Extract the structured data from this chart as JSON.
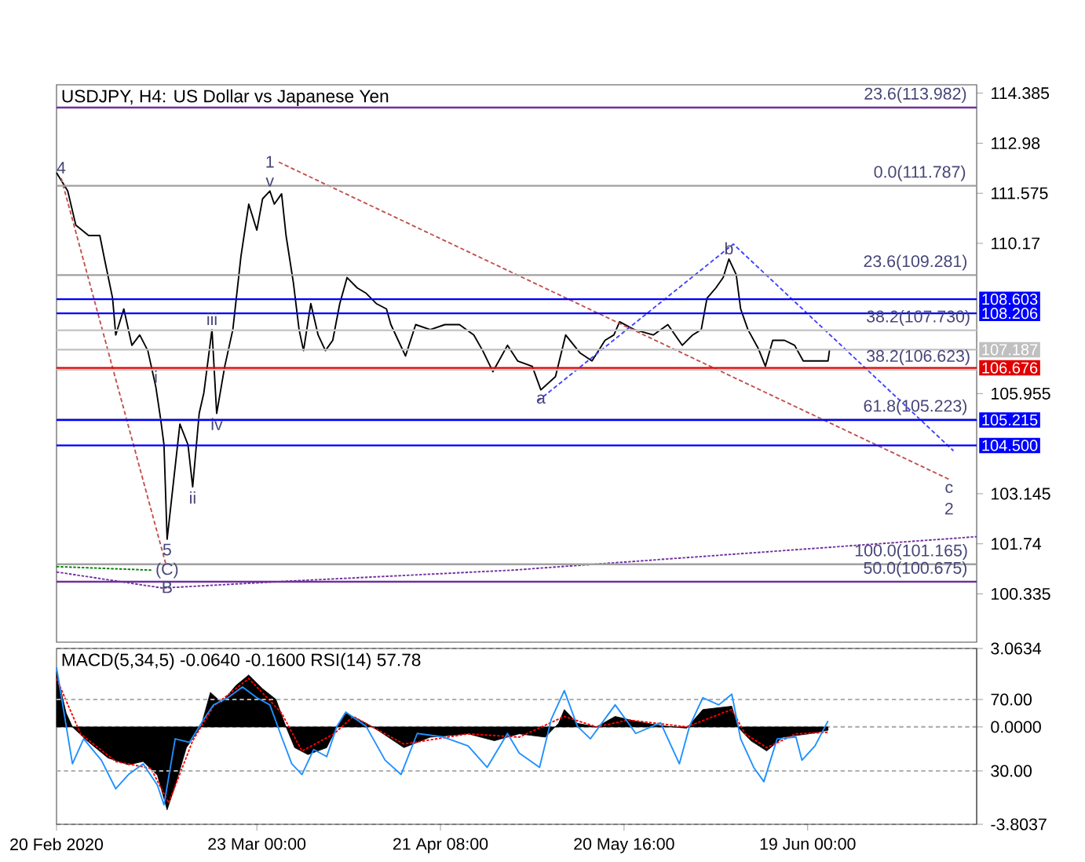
{
  "chart_data": [
    {
      "type": "line",
      "title": "USDJPY, H4:  US Dollar vs Japanese Yen",
      "xlim": [
        "2020-02-20T00:00",
        "2020-07-16T00:00"
      ],
      "ylim": [
        98.98,
        114.62
      ],
      "tick_labels": "y",
      "yticks": [
        114.385,
        112.98,
        111.575,
        110.17,
        105.955,
        103.145,
        101.74,
        100.335
      ],
      "series": [
        {
          "color": "#000000",
          "x": [
            "2020-02-20T00:00",
            "2020-02-21T19:00",
            "2020-02-23T02:00",
            "2020-02-25T03:00",
            "2020-02-26T22:00",
            "2020-02-27T16:00",
            "2020-02-28T23:00",
            "2020-02-29T11:00",
            "2020-03-01T18:00",
            "2020-03-03T01:00",
            "2020-03-04T07:00",
            "2020-03-05T14:00",
            "2020-03-06T21:00",
            "2020-03-07T15:00",
            "2020-03-08T04:00",
            "2020-03-08T16:00",
            "2020-03-09T10:00",
            "2020-03-10T17:00",
            "2020-03-12T00:00",
            "2020-03-12T18:00",
            "2020-03-13T19:00",
            "2020-03-14T13:00",
            "2020-03-15T20:00",
            "2020-03-16T14:00",
            "2020-03-17T21:00",
            "2020-03-19T04:00",
            "2020-03-20T11:00",
            "2020-03-21T17:00",
            "2020-03-23T00:00",
            "2020-03-23T22:00",
            "2020-03-25T02:00",
            "2020-03-25T19:00",
            "2020-03-26T23:00",
            "2020-03-27T16:00",
            "2020-03-28T20:00",
            "2020-03-29T18:00",
            "2020-03-30T11:00",
            "2020-03-31T15:00",
            "2020-04-01T19:00",
            "2020-04-02T23:00",
            "2020-04-04T03:00",
            "2020-04-05T06:00",
            "2020-04-06T10:00",
            "2020-04-08T01:00",
            "2020-04-09T11:00",
            "2020-04-11T02:00",
            "2020-04-12T17:00",
            "2020-04-13T10:00",
            "2020-04-15T18:00",
            "2020-04-17T09:00",
            "2020-04-19T17:00",
            "2020-04-22T01:00",
            "2020-04-24T09:00",
            "2020-04-26T16:00",
            "2020-04-28T02:00",
            "2020-04-29T17:00",
            "2020-05-02T01:00",
            "2020-05-03T16:00",
            "2020-05-06T00:00",
            "2020-05-07T09:00",
            "2020-05-09T17:00",
            "2020-05-11T08:00",
            "2020-05-13T16:00",
            "2020-05-15T13:00",
            "2020-05-17T15:00",
            "2020-05-19T01:00",
            "2020-05-19T23:00",
            "2020-05-22T07:00",
            "2020-05-25T08:00",
            "2020-05-27T16:00",
            "2020-05-29T23:00",
            "2020-05-31T15:00",
            "2020-06-02T00:00",
            "2020-06-02T22:00",
            "2020-06-04T08:00",
            "2020-06-05T12:00",
            "2020-06-06T10:00",
            "2020-06-07T14:00",
            "2020-06-08T07:00",
            "2020-06-09T11:00",
            "2020-06-11T02:00",
            "2020-06-12T06:00",
            "2020-06-13T10:00",
            "2020-06-15T07:00",
            "2020-06-16T22:00",
            "2020-06-18T07:00",
            "2020-06-20T09:00",
            "2020-06-22T06:00",
            "2020-06-22T12:00"
          ],
          "values": [
            112.15,
            111.64,
            110.68,
            110.39,
            110.39,
            109.73,
            108.63,
            107.6,
            108.33,
            107.31,
            107.6,
            107.16,
            106.13,
            105.25,
            104.52,
            101.87,
            103.05,
            105.1,
            104.52,
            103.34,
            105.4,
            105.98,
            107.75,
            105.4,
            106.72,
            107.75,
            109.8,
            111.27,
            110.54,
            111.42,
            111.64,
            111.27,
            111.56,
            110.39,
            109.07,
            107.75,
            107.16,
            108.48,
            107.6,
            107.16,
            107.45,
            108.48,
            109.21,
            108.92,
            108.77,
            108.48,
            108.33,
            107.89,
            107.01,
            107.89,
            107.75,
            107.89,
            107.89,
            107.6,
            107.16,
            106.57,
            107.31,
            106.87,
            106.72,
            106.06,
            106.43,
            107.6,
            107.09,
            106.87,
            107.45,
            107.6,
            107.97,
            107.75,
            107.6,
            107.89,
            107.31,
            107.6,
            107.75,
            108.63,
            108.92,
            109.21,
            109.73,
            109.29,
            108.33,
            107.75,
            107.23,
            106.72,
            107.45,
            107.45,
            107.31,
            106.87,
            106.87,
            106.87,
            107.19
          ]
        },
        {
          "color": "#c0504d",
          "line_style": "dashed",
          "x": [
            "2020-03-26T12:00",
            "2020-07-11T14:00"
          ],
          "values": [
            112.45,
            103.55
          ]
        },
        {
          "color": "#c0504d",
          "line_style": "dashed",
          "x": [
            "2020-02-20T18:00",
            "2020-03-08T10:00"
          ],
          "values": [
            112.0,
            101.2
          ]
        },
        {
          "color": "#4040ff",
          "line_style": "dashed",
          "x": [
            "2020-05-06T22:00",
            "2020-06-07T03:00",
            "2020-07-12T07:00"
          ],
          "values": [
            105.75,
            110.15,
            104.35
          ]
        },
        {
          "color": "#7030a0",
          "line_style": "dotted",
          "x": [
            "2020-02-20T00:00",
            "2020-03-07T22:00",
            "2020-03-28T20:00",
            "2020-05-02T18:00",
            "2020-07-16T00:00"
          ],
          "values": [
            100.95,
            100.5,
            100.7,
            101.0,
            101.94
          ]
        },
        {
          "color": "#008000",
          "line_style": "dotted",
          "x": [
            "2020-02-20T00:00",
            "2020-03-06T09:00"
          ],
          "values": [
            101.1,
            101.0
          ]
        }
      ],
      "ref_lines": [
        {
          "axis": "y",
          "value": 113.982,
          "color": "#7030a0"
        },
        {
          "axis": "y",
          "value": 111.787,
          "color": "#a0a0a0"
        },
        {
          "axis": "y",
          "value": 109.281,
          "color": "#a0a0a0"
        },
        {
          "axis": "y",
          "value": 107.73,
          "color": "#c8c8c8"
        },
        {
          "axis": "y",
          "value": 106.623,
          "color": "#c8c8c8"
        },
        {
          "axis": "y",
          "value": 105.223,
          "color": "#a0a0a0"
        },
        {
          "axis": "y",
          "value": 101.165,
          "color": "#a0a0a0"
        },
        {
          "axis": "y",
          "value": 100.675,
          "color": "#7030a0"
        },
        {
          "axis": "y",
          "value": 108.603,
          "label": "108.603",
          "color": "#0000ff"
        },
        {
          "axis": "y",
          "value": 108.206,
          "label": "108.206",
          "color": "#0000ff"
        },
        {
          "axis": "y",
          "value": 107.187,
          "label": "107.187",
          "color": "#c0c0c0"
        },
        {
          "axis": "y",
          "value": 106.676,
          "label": "106.676",
          "color": "#e00000"
        },
        {
          "axis": "y",
          "value": 105.215,
          "label": "105.215",
          "color": "#0000ff"
        },
        {
          "axis": "y",
          "value": 104.5,
          "label": "104.500",
          "color": "#0000ff"
        }
      ],
      "annotations": [
        {
          "text": "23.6(113.982)",
          "x": "2020-07-06T05:00",
          "y": 113.982
        },
        {
          "text": "0.0(111.787)",
          "x": "2020-07-06T22:00",
          "y": 111.787
        },
        {
          "text": "23.6(109.281)",
          "x": "2020-07-06T05:00",
          "y": 109.281
        },
        {
          "text": "38.2(107.730)",
          "x": "2020-07-06T16:00",
          "y": 107.73
        },
        {
          "text": "38.2(106.623)",
          "x": "2020-07-06T16:00",
          "y": 106.623
        },
        {
          "text": "61.8(105.223)",
          "x": "2020-07-06T05:00",
          "y": 105.223
        },
        {
          "text": "100.0(101.165)",
          "x": "2020-07-05T13:00",
          "y": 101.165
        },
        {
          "text": "50.0(100.675)",
          "x": "2020-07-06T05:00",
          "y": 100.675
        },
        {
          "text": "4",
          "x": "2020-02-20T18:00",
          "y": 112.0
        },
        {
          "text": "v",
          "x": "2020-03-25T02:00",
          "y": 111.64
        },
        {
          "text": "1",
          "x": "2020-03-25T02:00",
          "y": 111.64
        },
        {
          "text": "i",
          "x": "2020-03-06T21:00",
          "y": 106.13
        },
        {
          "text": "ii",
          "x": "2020-03-12T18:00",
          "y": 103.34
        },
        {
          "text": "iii",
          "x": "2020-03-15T20:00",
          "y": 107.75
        },
        {
          "text": "iv",
          "x": "2020-03-16T14:00",
          "y": 105.4
        },
        {
          "text": "5",
          "x": "2020-03-08T16:00",
          "y": 101.87
        },
        {
          "text": "(C)",
          "x": "2020-03-08T16:00",
          "y": 101.87
        },
        {
          "text": "B",
          "x": "2020-03-08T16:00",
          "y": 101.87
        },
        {
          "text": "a",
          "x": "2020-05-07T09:00",
          "y": 106.06
        },
        {
          "text": "b",
          "x": "2020-06-06T10:00",
          "y": 109.73
        },
        {
          "text": "c",
          "x": "2020-07-11T14:00",
          "y": 103.55
        },
        {
          "text": "2",
          "x": "2020-07-11T14:00",
          "y": 103.55
        }
      ]
    },
    {
      "type": "line",
      "title": "MACD(5,34,5) -0.0640 -0.1600 RSI(14) 57.78",
      "xlim": [
        "2020-02-20T00:00",
        "2020-07-16T00:00"
      ],
      "ylim": [
        -3.8037,
        3.0634
      ],
      "y2lim": [
        0.1,
        98.6
      ],
      "xticks": [
        {
          "value": "2020-02-20T00:00",
          "label": "20 Feb 2020"
        },
        {
          "value": "2020-03-23T00:00",
          "label": "23 Mar 00:00"
        },
        {
          "value": "2020-04-21T08:00",
          "label": "21 Apr 08:00"
        },
        {
          "value": "2020-05-20T16:00",
          "label": "20 May 16:00"
        },
        {
          "value": "2020-06-19T00:00",
          "label": "19 Jun 00:00"
        }
      ],
      "yticks": [
        3.0634,
        {
          "value": 0,
          "label": "0.0000"
        },
        -3.8037
      ],
      "y2ticks": [
        {
          "value": 70,
          "label": "70.00"
        },
        {
          "value": 30,
          "label": "30.00"
        }
      ],
      "series": [
        {
          "type": "area",
          "color": "#000000",
          "x": [
            "2020-02-20T00:00",
            "2020-02-21T13:00",
            "2020-02-22T13:00",
            "2020-02-24T21:00",
            "2020-02-28T05:00",
            "2020-03-02T12:00",
            "2020-03-04T20:00",
            "2020-03-07T03:00",
            "2020-03-08T16:00",
            "2020-03-09T23:00",
            "2020-03-11T18:00",
            "2020-03-14T01:00",
            "2020-03-15T14:00",
            "2020-03-17T09:00",
            "2020-03-19T16:00",
            "2020-03-21T17:00",
            "2020-03-23T22:00",
            "2020-03-26T01:00",
            "2020-03-27T16:00",
            "2020-03-29T01:00",
            "2020-03-31T04:00",
            "2020-04-03T04:00",
            "2020-04-04T19:00",
            "2020-04-06T05:00",
            "2020-04-09T11:00",
            "2020-04-11T08:00",
            "2020-04-15T12:00",
            "2020-04-19T17:00",
            "2020-04-25T18:00",
            "2020-04-29T23:00",
            "2020-05-03T22:00",
            "2020-05-08T02:00",
            "2020-05-10T05:00",
            "2020-05-11T03:00",
            "2020-05-13T05:00",
            "2020-05-16T06:00",
            "2020-05-19T06:00",
            "2020-05-22T13:00",
            "2020-05-26T12:00",
            "2020-05-30T16:00",
            "2020-06-02T06:00",
            "2020-06-06T21:00",
            "2020-06-07T20:00",
            "2020-06-09T22:00",
            "2020-06-12T11:00",
            "2020-06-15T01:00",
            "2020-06-19T05:00",
            "2020-06-22T06:00"
          ],
          "values": [
            2.16,
            0.54,
            0,
            -0.54,
            -1.21,
            -1.48,
            -1.35,
            -1.89,
            -3.24,
            -2.29,
            -0.81,
            0,
            1.35,
            0.95,
            1.62,
            2.03,
            1.49,
            1.08,
            0,
            -0.81,
            -1.08,
            -0.81,
            0,
            0.54,
            0.14,
            -0.13,
            -0.81,
            -0.4,
            -0.27,
            -0.54,
            -0.27,
            -0.4,
            0.14,
            0.68,
            0.14,
            0,
            0.41,
            0.22,
            0.05,
            -0.05,
            0.68,
            0.81,
            0,
            -0.54,
            -0.94,
            -0.4,
            -0.27,
            -0.13
          ]
        },
        {
          "color": "#ff0000",
          "line_style": "dotted",
          "x": [
            "2020-02-20T00:00",
            "2020-02-23T20:00",
            "2020-02-29T11:00",
            "2020-03-06T02:00",
            "2020-03-08T22:00",
            "2020-03-12T18:00",
            "2020-03-16T02:00",
            "2020-03-21T17:00",
            "2020-03-26T23:00",
            "2020-03-30T05:00",
            "2020-04-04T08:00",
            "2020-04-07T09:00",
            "2020-04-15T12:00",
            "2020-04-25T18:00",
            "2020-05-03T22:00",
            "2020-05-11T03:00",
            "2020-05-16T06:00",
            "2020-05-21T09:00",
            "2020-05-30T16:00",
            "2020-06-06T21:00",
            "2020-06-09T00:00",
            "2020-06-12T11:00",
            "2020-06-17T03:00",
            "2020-06-22T06:00"
          ],
          "values": [
            1.89,
            -0.27,
            -1.35,
            -1.62,
            -2.97,
            -0.54,
            0.81,
            1.89,
            0.54,
            -0.94,
            -0.27,
            0.41,
            -0.67,
            -0.27,
            -0.4,
            0.41,
            0,
            0.27,
            0,
            0.68,
            -0.27,
            -0.81,
            -0.27,
            -0.21
          ]
        },
        {
          "color": "#1e90ff",
          "axis": "y2",
          "x": [
            "2020-02-20T00:00",
            "2020-02-22T13:00",
            "2020-02-24T08:00",
            "2020-02-27T04:00",
            "2020-02-29T11:00",
            "2020-03-02T12:00",
            "2020-03-04T20:00",
            "2020-03-07T03:00",
            "2020-03-08T04:00",
            "2020-03-09T23:00",
            "2020-03-12T06:00",
            "2020-03-14T13:00",
            "2020-03-16T02:00",
            "2020-03-18T09:00",
            "2020-03-20T17:00",
            "2020-03-23T00:00",
            "2020-03-25T02:00",
            "2020-03-26T23:00",
            "2020-03-28T14:00",
            "2020-03-30T05:00",
            "2020-04-01T02:00",
            "2020-04-03T04:00",
            "2020-04-04T19:00",
            "2020-04-06T05:00",
            "2020-04-09T11:00",
            "2020-04-12T12:00",
            "2020-04-15T01:00",
            "2020-04-17T15:00",
            "2020-04-21T19:00",
            "2020-04-25T18:00",
            "2020-04-28T19:00",
            "2020-05-02T01:00",
            "2020-05-03T22:00",
            "2020-05-07T04:00",
            "2020-05-09T01:00",
            "2020-05-11T03:00",
            "2020-05-13T05:00",
            "2020-05-15T07:00",
            "2020-05-19T06:00",
            "2020-05-22T13:00",
            "2020-05-26T12:00",
            "2020-05-29T12:00",
            "2020-05-31T03:00",
            "2020-06-02T06:00",
            "2020-06-04T19:00",
            "2020-06-06T21:00",
            "2020-06-08T07:00",
            "2020-06-10T09:00",
            "2020-06-12T00:00",
            "2020-06-14T03:00",
            "2020-06-17T03:00",
            "2020-06-18T02:00",
            "2020-06-20T04:00",
            "2020-06-22T06:00"
          ],
          "values": [
            88,
            34,
            48,
            36,
            20,
            28,
            34,
            22,
            11,
            48,
            46,
            59,
            67,
            71,
            77,
            71,
            67,
            49,
            34,
            28,
            42,
            38,
            55,
            63,
            55,
            36,
            28,
            51,
            49,
            44,
            32,
            51,
            40,
            32,
            59,
            75,
            55,
            48,
            67,
            51,
            57,
            34,
            55,
            71,
            67,
            73,
            48,
            32,
            24,
            48,
            49,
            36,
            44,
            58
          ]
        }
      ],
      "grid": "y"
    }
  ]
}
